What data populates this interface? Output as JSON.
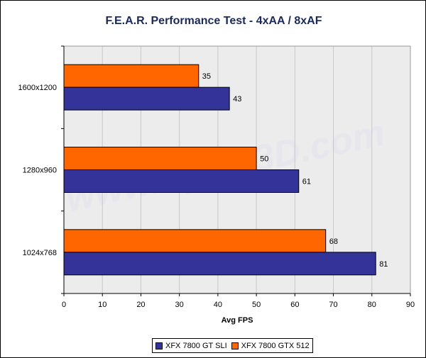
{
  "chart_data": {
    "type": "bar",
    "orientation": "horizontal",
    "title": "F.E.A.R. Performance Test - 4xAA / 8xAF",
    "xlabel": "Avg FPS",
    "ylabel": "",
    "categories": [
      "1600x1200",
      "1280x960",
      "1024x768"
    ],
    "series": [
      {
        "name": "XFX 7800 GTX 512",
        "color": "#ff6600",
        "values": [
          35,
          50,
          68
        ]
      },
      {
        "name": "XFX 7800 GT SLI",
        "color": "#333399",
        "values": [
          43,
          61,
          81
        ]
      }
    ],
    "xlim": [
      0,
      90
    ],
    "xticks": [
      0,
      10,
      20,
      30,
      40,
      50,
      60,
      70,
      80,
      90
    ],
    "grid": true,
    "legend_position": "bottom",
    "legend_order": [
      "XFX 7800 GT SLI",
      "XFX 7800 GTX 512"
    ],
    "watermark": "www.Bjorn3D.com"
  }
}
